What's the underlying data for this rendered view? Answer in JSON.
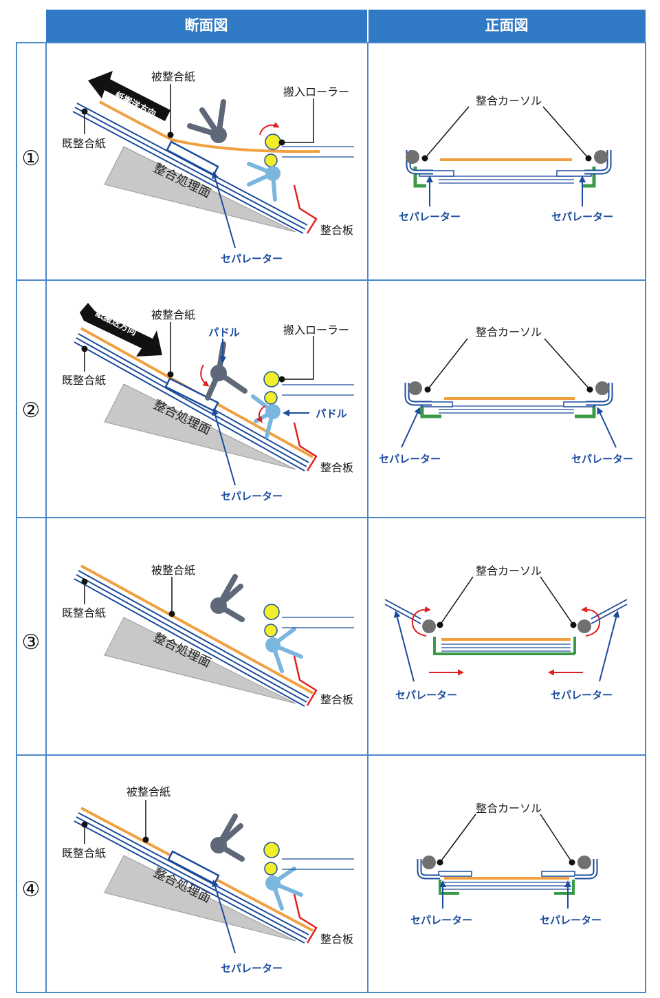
{
  "headers": {
    "cross_section": "断面図",
    "front_view": "正面図"
  },
  "steps": [
    {
      "number": "①"
    },
    {
      "number": "②"
    },
    {
      "number": "③"
    },
    {
      "number": "④"
    }
  ],
  "labels": {
    "aligned_paper": "被整合紙",
    "existing_paper": "既整合紙",
    "carry_in_roller": "搬入ローラー",
    "alignment_surface": "整合処理面",
    "alignment_plate": "整合板",
    "separator": "セパレーター",
    "paddle": "パドル",
    "alignment_cursor": "整合カーソル",
    "paper_direction": "紙搬送方向"
  },
  "colors": {
    "header_bg": "#2f79c5",
    "grid_border": "#4a88cc",
    "paper_orange": "#f0a040",
    "navy": "#1a4b9c",
    "roller_yellow": "#f3ee2a",
    "paddle_blue": "#7ab6de",
    "paddle_gray": "#5f6878",
    "separator_green": "#3a9a48",
    "motion_red": "#e02020",
    "surface_gray": "#c8c8c8"
  }
}
